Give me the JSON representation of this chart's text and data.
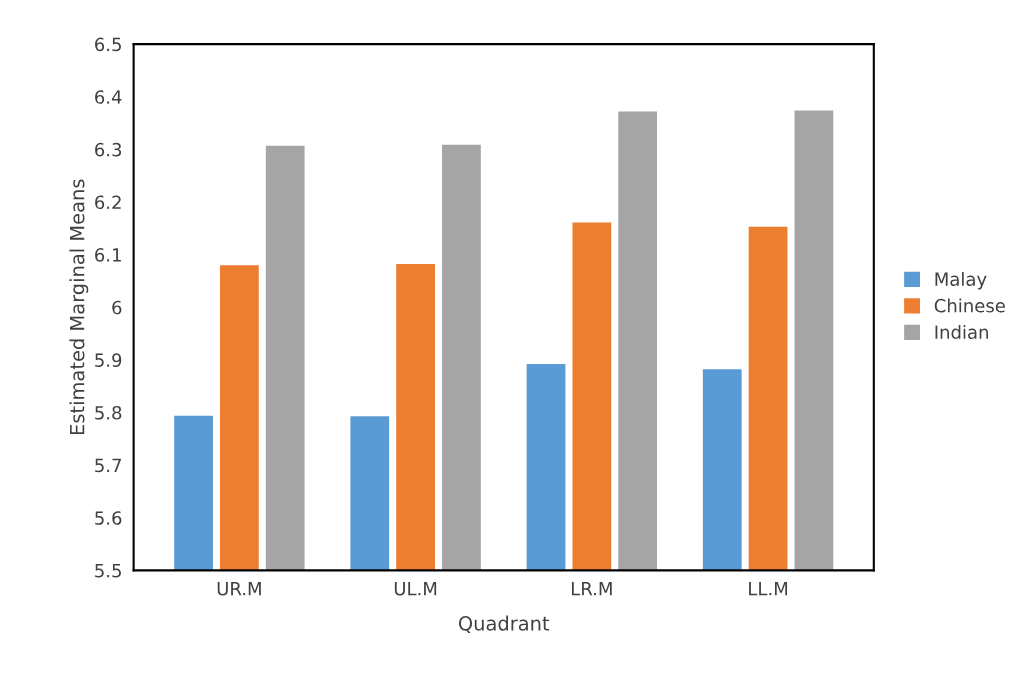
{
  "chart_data": {
    "type": "bar",
    "xlabel": "Quadrant",
    "ylabel": "Estimated Marginal Means",
    "categories": [
      "UR.M",
      "UL.M",
      "LR.M",
      "LL.M"
    ],
    "series": [
      {
        "name": "Malay",
        "color": "#5b9bd5",
        "values": [
          5.794,
          5.793,
          5.892,
          5.882
        ]
      },
      {
        "name": "Chinese",
        "color": "#ed7d31",
        "values": [
          6.08,
          6.082,
          6.161,
          6.153
        ]
      },
      {
        "name": "Indian",
        "color": "#a5a5a5",
        "values": [
          6.307,
          6.309,
          6.372,
          6.374
        ]
      }
    ],
    "ylim": [
      5.5,
      6.5
    ],
    "yticks": [
      5.5,
      5.6,
      5.7,
      5.8,
      5.9,
      6,
      6.1,
      6.2,
      6.3,
      6.4,
      6.5
    ],
    "grid": false,
    "legend": "right"
  }
}
